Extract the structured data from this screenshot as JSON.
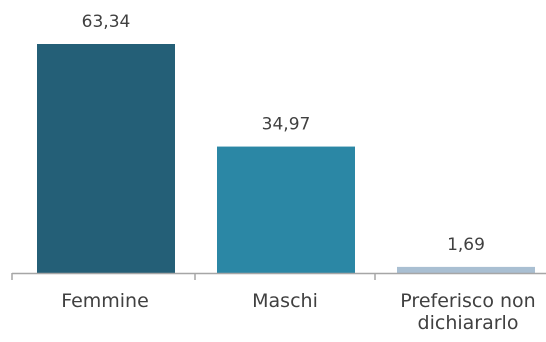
{
  "chart_data": {
    "type": "bar",
    "categories": [
      "Femmine",
      "Maschi",
      "Preferisco non dichiararlo"
    ],
    "category_lines": [
      [
        "Femmine"
      ],
      [
        "Maschi"
      ],
      [
        "Preferisco non",
        "dichiararlo"
      ]
    ],
    "values": [
      63.34,
      34.97,
      1.69
    ],
    "value_labels": [
      "63,34",
      "34,97",
      "1,69"
    ],
    "colors": [
      "#245f77",
      "#2b87a5",
      "#a9bfd2"
    ],
    "axis_color": "#a6a6a6",
    "ylim": [
      0,
      63.34
    ],
    "grid": false,
    "legend": "none"
  }
}
